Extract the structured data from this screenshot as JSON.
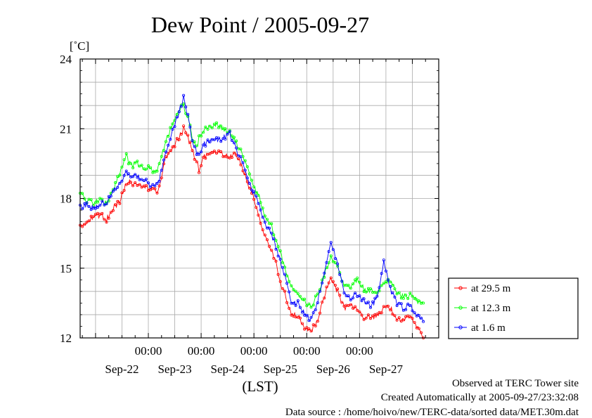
{
  "chart_data": {
    "type": "line",
    "title": "Dew Point / 2005-09-27",
    "ylabel": "[˚C]",
    "xlabel": "(LST)",
    "ylim": [
      12,
      24
    ],
    "yticks": [
      "24",
      "21",
      "18",
      "15",
      "12"
    ],
    "xlim_hours": [
      -31,
      132
    ],
    "x_time_labels": [
      {
        "label": "00:00",
        "hour": 0
      },
      {
        "label": "00:00",
        "hour": 24
      },
      {
        "label": "00:00",
        "hour": 48
      },
      {
        "label": "00:00",
        "hour": 72
      },
      {
        "label": "00:00",
        "hour": 96
      }
    ],
    "x_date_labels": [
      {
        "label": "Sep-22",
        "hour": -12
      },
      {
        "label": "Sep-23",
        "hour": 12
      },
      {
        "label": "Sep-24",
        "hour": 36
      },
      {
        "label": "Sep-25",
        "hour": 60
      },
      {
        "label": "Sep-26",
        "hour": 84
      },
      {
        "label": "Sep-27",
        "hour": 108
      }
    ],
    "legend_position": "bottom-right outside",
    "grid": true,
    "series": [
      {
        "name": "at 29.5 m",
        "color": "#ff0000",
        "points": [
          [
            -31,
            16.8
          ],
          [
            -28,
            17.0
          ],
          [
            -25,
            17.2
          ],
          [
            -22,
            17.3
          ],
          [
            -19,
            17.1
          ],
          [
            -16,
            17.6
          ],
          [
            -13,
            17.9
          ],
          [
            -10,
            18.6
          ],
          [
            -8,
            18.7
          ],
          [
            -5,
            18.5
          ],
          [
            -2,
            18.6
          ],
          [
            1,
            18.4
          ],
          [
            4,
            18.3
          ],
          [
            5,
            18.6
          ],
          [
            8,
            19.8
          ],
          [
            11,
            20.2
          ],
          [
            14,
            20.6
          ],
          [
            16,
            21.0
          ],
          [
            18,
            20.6
          ],
          [
            20,
            20.0
          ],
          [
            22,
            19.6
          ],
          [
            23,
            19.2
          ],
          [
            25,
            19.8
          ],
          [
            28,
            19.9
          ],
          [
            31,
            20.0
          ],
          [
            34,
            19.9
          ],
          [
            37,
            19.8
          ],
          [
            40,
            19.9
          ],
          [
            43,
            19.2
          ],
          [
            46,
            18.5
          ],
          [
            48,
            18.0
          ],
          [
            50,
            17.3
          ],
          [
            53,
            16.4
          ],
          [
            56,
            15.8
          ],
          [
            58,
            15.2
          ],
          [
            60,
            14.4
          ],
          [
            62,
            13.9
          ],
          [
            65,
            13.0
          ],
          [
            68,
            13.0
          ],
          [
            71,
            12.4
          ],
          [
            74,
            12.3
          ],
          [
            77,
            12.8
          ],
          [
            80,
            13.8
          ],
          [
            83,
            14.6
          ],
          [
            86,
            14.0
          ],
          [
            89,
            13.3
          ],
          [
            92,
            13.4
          ],
          [
            95,
            13.3
          ],
          [
            98,
            12.9
          ],
          [
            101,
            12.9
          ],
          [
            104,
            13.0
          ],
          [
            107,
            13.3
          ],
          [
            110,
            13.3
          ],
          [
            113,
            12.8
          ],
          [
            116,
            12.8
          ],
          [
            119,
            12.9
          ],
          [
            122,
            12.5
          ],
          [
            124,
            12.3
          ],
          [
            125,
            12.0
          ]
        ]
      },
      {
        "name": "at 12.3 m",
        "color": "#00ff00",
        "points": [
          [
            -31,
            18.2
          ],
          [
            -28,
            17.9
          ],
          [
            -25,
            17.8
          ],
          [
            -22,
            17.9
          ],
          [
            -19,
            17.8
          ],
          [
            -16,
            18.3
          ],
          [
            -13,
            19.1
          ],
          [
            -10,
            19.8
          ],
          [
            -8,
            19.4
          ],
          [
            -5,
            19.5
          ],
          [
            -2,
            19.3
          ],
          [
            1,
            19.3
          ],
          [
            3,
            19.1
          ],
          [
            5,
            19.5
          ],
          [
            8,
            20.5
          ],
          [
            11,
            21.2
          ],
          [
            14,
            21.8
          ],
          [
            16,
            22.0
          ],
          [
            18,
            21.5
          ],
          [
            20,
            20.6
          ],
          [
            22,
            20.2
          ],
          [
            23,
            20.6
          ],
          [
            25,
            20.9
          ],
          [
            28,
            21.1
          ],
          [
            31,
            21.2
          ],
          [
            34,
            21.0
          ],
          [
            37,
            20.9
          ],
          [
            40,
            20.4
          ],
          [
            43,
            19.9
          ],
          [
            46,
            19.0
          ],
          [
            48,
            18.5
          ],
          [
            50,
            18.2
          ],
          [
            53,
            17.3
          ],
          [
            56,
            16.8
          ],
          [
            58,
            16.2
          ],
          [
            60,
            15.7
          ],
          [
            62,
            15.0
          ],
          [
            65,
            14.2
          ],
          [
            68,
            13.9
          ],
          [
            71,
            13.6
          ],
          [
            74,
            13.3
          ],
          [
            77,
            13.9
          ],
          [
            80,
            14.7
          ],
          [
            83,
            15.5
          ],
          [
            86,
            15.0
          ],
          [
            89,
            14.2
          ],
          [
            92,
            14.2
          ],
          [
            95,
            14.5
          ],
          [
            98,
            14.1
          ],
          [
            101,
            14.0
          ],
          [
            104,
            14.0
          ],
          [
            107,
            14.4
          ],
          [
            110,
            14.5
          ],
          [
            113,
            13.9
          ],
          [
            116,
            13.8
          ],
          [
            119,
            13.8
          ],
          [
            122,
            13.6
          ],
          [
            125,
            13.5
          ]
        ]
      },
      {
        "name": "at 1.6 m",
        "color": "#0000ff",
        "points": [
          [
            -31,
            17.6
          ],
          [
            -28,
            17.7
          ],
          [
            -25,
            17.6
          ],
          [
            -22,
            17.8
          ],
          [
            -19,
            17.8
          ],
          [
            -16,
            18.4
          ],
          [
            -13,
            18.6
          ],
          [
            -10,
            19.1
          ],
          [
            -8,
            18.9
          ],
          [
            -5,
            19.0
          ],
          [
            -2,
            18.8
          ],
          [
            1,
            18.6
          ],
          [
            3,
            18.5
          ],
          [
            5,
            18.8
          ],
          [
            8,
            20.0
          ],
          [
            11,
            20.9
          ],
          [
            14,
            21.7
          ],
          [
            16,
            22.4
          ],
          [
            18,
            21.5
          ],
          [
            20,
            20.5
          ],
          [
            22,
            20.0
          ],
          [
            23,
            19.8
          ],
          [
            25,
            20.3
          ],
          [
            28,
            20.5
          ],
          [
            31,
            20.5
          ],
          [
            34,
            20.6
          ],
          [
            37,
            20.8
          ],
          [
            40,
            20.1
          ],
          [
            43,
            19.5
          ],
          [
            46,
            18.7
          ],
          [
            48,
            18.2
          ],
          [
            50,
            17.8
          ],
          [
            53,
            17.0
          ],
          [
            56,
            16.4
          ],
          [
            58,
            15.9
          ],
          [
            60,
            15.3
          ],
          [
            62,
            14.7
          ],
          [
            65,
            13.5
          ],
          [
            68,
            13.5
          ],
          [
            71,
            13.0
          ],
          [
            74,
            12.8
          ],
          [
            77,
            13.6
          ],
          [
            80,
            14.7
          ],
          [
            83,
            16.1
          ],
          [
            86,
            15.2
          ],
          [
            89,
            14.0
          ],
          [
            92,
            13.7
          ],
          [
            95,
            13.9
          ],
          [
            98,
            13.6
          ],
          [
            101,
            13.4
          ],
          [
            104,
            13.7
          ],
          [
            107,
            15.3
          ],
          [
            110,
            14.1
          ],
          [
            113,
            13.5
          ],
          [
            116,
            13.3
          ],
          [
            119,
            13.4
          ],
          [
            122,
            13.0
          ],
          [
            125,
            12.7
          ]
        ]
      }
    ]
  },
  "footer": {
    "line1": "Observed at TERC Tower site",
    "line2": "Created Automatically at 2005-09-27/23:32:08",
    "line3": "Data source : /home/hoivo/new/TERC-data/sorted  data/MET.30m.dat"
  }
}
